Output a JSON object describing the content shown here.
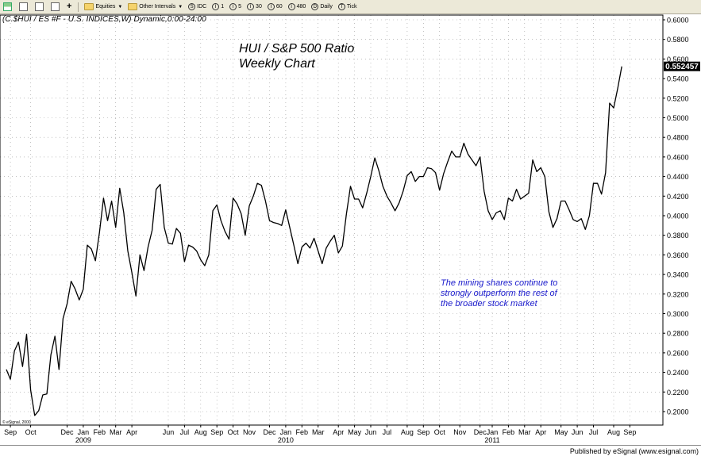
{
  "toolbar": {
    "items": [
      {
        "label": "Equities",
        "icon": "folder-icon",
        "dropdown": true
      },
      {
        "label": "Other Intervals",
        "icon": "folder-icon",
        "dropdown": true
      },
      {
        "label": "IDC",
        "icon": "clock-icon"
      },
      {
        "label": "1",
        "icon": "clock-icon"
      },
      {
        "label": "5",
        "icon": "clock-icon"
      },
      {
        "label": "30",
        "icon": "clock-icon"
      },
      {
        "label": "60",
        "icon": "clock-icon"
      },
      {
        "label": "480",
        "icon": "clock-icon"
      },
      {
        "label": "Daily",
        "icon": "clock-icon"
      },
      {
        "label": "Tick",
        "icon": "clock-icon"
      }
    ]
  },
  "header": "(C.$HUI / ES #F - U.S. INDICES,W) Dynamic,0:00-24:00",
  "footer": "Published by eSignal (www.esignal.com)",
  "copyright": "© eSignal, 2000",
  "colors": {
    "line": "#000000",
    "annotation": "#1a1acc",
    "grid": "#9a9a9a",
    "price_box": "#000000"
  },
  "chart_data": {
    "type": "line",
    "title": "HUI  / S&P 500 Ratio",
    "subtitle": "Weekly Chart",
    "annotation_lines": [
      "The mining shares continue to",
      "strongly outperform the rest of",
      "the broader stock market"
    ],
    "last_value_label": "0.552457",
    "ylim": [
      0.18,
      0.61
    ],
    "y_ticks": [
      0.2,
      0.22,
      0.24,
      0.26,
      0.28,
      0.3,
      0.32,
      0.34,
      0.36,
      0.38,
      0.4,
      0.42,
      0.44,
      0.46,
      0.48,
      0.5,
      0.52,
      0.54,
      0.56,
      0.58,
      0.6
    ],
    "y_tick_labels": [
      "0.2000",
      "0.2200",
      "0.2400",
      "0.2600",
      "0.2800",
      "0.3000",
      "0.3200",
      "0.3400",
      "0.3600",
      "0.3800",
      "0.4000",
      "0.4200",
      "0.4400",
      "0.4600",
      "0.4800",
      "0.5000",
      "0.5200",
      "0.5400",
      "0.5600",
      "0.5800",
      "0.6000"
    ],
    "x_range": [
      0,
      158
    ],
    "x_ticks": [
      {
        "week": 1,
        "label": "Sep"
      },
      {
        "week": 6,
        "label": "Oct"
      },
      {
        "week": 15,
        "label": "Dec"
      },
      {
        "week": 19,
        "label": "Jan"
      },
      {
        "week": 23,
        "label": "Feb"
      },
      {
        "week": 27,
        "label": "Mar"
      },
      {
        "week": 31,
        "label": "Apr"
      },
      {
        "week": 40,
        "label": "Jun"
      },
      {
        "week": 44,
        "label": "Jul"
      },
      {
        "week": 48,
        "label": "Aug"
      },
      {
        "week": 52,
        "label": "Sep"
      },
      {
        "week": 56,
        "label": "Oct"
      },
      {
        "week": 60,
        "label": "Nov"
      },
      {
        "week": 65,
        "label": "Dec"
      },
      {
        "week": 69,
        "label": "Jan"
      },
      {
        "week": 73,
        "label": "Feb"
      },
      {
        "week": 77,
        "label": "Mar"
      },
      {
        "week": 82,
        "label": "Apr"
      },
      {
        "week": 86,
        "label": "May"
      },
      {
        "week": 90,
        "label": "Jun"
      },
      {
        "week": 94,
        "label": "Jul"
      },
      {
        "week": 99,
        "label": "Aug"
      },
      {
        "week": 103,
        "label": "Sep"
      },
      {
        "week": 107,
        "label": "Oct"
      },
      {
        "week": 112,
        "label": "Nov"
      },
      {
        "week": 117,
        "label": "Dec"
      },
      {
        "week": 120,
        "label": "Jan"
      },
      {
        "week": 124,
        "label": "Feb"
      },
      {
        "week": 128,
        "label": "Mar"
      },
      {
        "week": 132,
        "label": "Apr"
      },
      {
        "week": 137,
        "label": "May"
      },
      {
        "week": 141,
        "label": "Jun"
      },
      {
        "week": 145,
        "label": "Jul"
      },
      {
        "week": 150,
        "label": "Aug"
      },
      {
        "week": 154,
        "label": "Sep"
      }
    ],
    "year_labels": [
      {
        "week": 19,
        "label": "2009"
      },
      {
        "week": 69,
        "label": "2010"
      },
      {
        "week": 120,
        "label": "2011"
      }
    ],
    "series": [
      {
        "x": [
          0,
          1,
          2,
          3,
          4,
          5,
          6,
          7,
          8,
          9,
          10,
          11,
          12,
          13,
          14,
          15,
          16,
          17,
          18,
          19,
          20,
          21,
          22,
          23,
          24,
          25,
          26,
          27,
          28,
          29,
          30,
          31,
          32,
          33,
          34,
          35,
          36,
          37,
          38,
          39,
          40,
          41,
          42,
          43,
          44,
          45,
          46,
          47,
          48,
          49,
          50,
          51,
          52,
          53,
          54,
          55,
          56,
          57,
          58,
          59,
          60,
          61,
          62,
          63,
          64,
          65,
          66,
          67,
          68,
          69,
          70,
          71,
          72,
          73,
          74,
          75,
          76,
          77,
          78,
          79,
          80,
          81,
          82,
          83,
          84,
          85,
          86,
          87,
          88,
          89,
          90,
          91,
          92,
          93,
          94,
          95,
          96,
          97,
          98,
          99,
          100,
          101,
          102,
          103,
          104,
          105,
          106,
          107,
          108,
          109,
          110,
          111,
          112,
          113,
          114,
          115,
          116,
          117,
          118,
          119,
          120,
          121,
          122,
          123,
          124,
          125,
          126,
          127,
          128,
          129,
          130,
          131,
          132,
          133,
          134,
          135,
          136,
          137,
          138,
          139,
          140,
          141,
          142,
          143,
          144,
          145,
          146,
          147,
          148,
          149,
          150,
          151,
          152
        ],
        "values": [
          0.243,
          0.233,
          0.262,
          0.271,
          0.246,
          0.279,
          0.222,
          0.196,
          0.201,
          0.217,
          0.218,
          0.258,
          0.277,
          0.243,
          0.295,
          0.31,
          0.333,
          0.325,
          0.314,
          0.325,
          0.37,
          0.366,
          0.354,
          0.383,
          0.418,
          0.395,
          0.415,
          0.388,
          0.428,
          0.403,
          0.364,
          0.342,
          0.318,
          0.36,
          0.344,
          0.368,
          0.385,
          0.427,
          0.432,
          0.388,
          0.372,
          0.371,
          0.387,
          0.382,
          0.353,
          0.37,
          0.368,
          0.364,
          0.355,
          0.349,
          0.36,
          0.405,
          0.411,
          0.395,
          0.384,
          0.376,
          0.418,
          0.412,
          0.402,
          0.38,
          0.41,
          0.42,
          0.433,
          0.431,
          0.415,
          0.395,
          0.393,
          0.392,
          0.39,
          0.406,
          0.388,
          0.37,
          0.351,
          0.368,
          0.372,
          0.367,
          0.377,
          0.364,
          0.351,
          0.367,
          0.374,
          0.38,
          0.362,
          0.369,
          0.402,
          0.43,
          0.417,
          0.417,
          0.408,
          0.423,
          0.44,
          0.459,
          0.446,
          0.43,
          0.42,
          0.413,
          0.405,
          0.413,
          0.425,
          0.441,
          0.445,
          0.435,
          0.44,
          0.44,
          0.449,
          0.448,
          0.444,
          0.426,
          0.443,
          0.455,
          0.466,
          0.46,
          0.46,
          0.474,
          0.463,
          0.457,
          0.451,
          0.46,
          0.425,
          0.405,
          0.396,
          0.403,
          0.405,
          0.396,
          0.418,
          0.415,
          0.427,
          0.417,
          0.42,
          0.423,
          0.457,
          0.445,
          0.449,
          0.44,
          0.404,
          0.388,
          0.397,
          0.415,
          0.415,
          0.406,
          0.396,
          0.394,
          0.397,
          0.386,
          0.4,
          0.433,
          0.433,
          0.422,
          0.444,
          0.515,
          0.51,
          0.53,
          0.552457
        ]
      }
    ]
  }
}
